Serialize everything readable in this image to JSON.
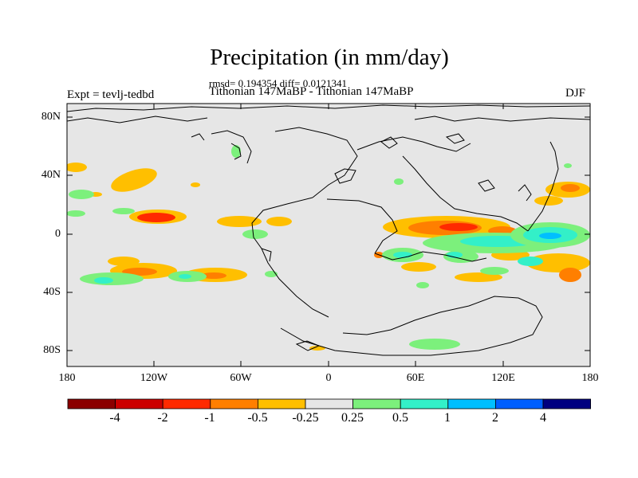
{
  "title": "Precipitation (in mm/day)",
  "stats": "rmsd= 0.194354 diff= 0.0121341",
  "subtitle": "Tithonian 147MaBP - Tithonian 147MaBP",
  "expt": "Expt = tevlj-tedbd",
  "season": "DJF",
  "lat_labels": [
    "80N",
    "40N",
    "0",
    "40S",
    "80S"
  ],
  "lon_labels": [
    "180",
    "120W",
    "60W",
    "0",
    "60E",
    "120E",
    "180"
  ],
  "colorbar": {
    "labels": [
      "-4",
      "-2",
      "-1",
      "-0.5",
      "-0.25",
      "0.25",
      "0.5",
      "1",
      "2",
      "4"
    ],
    "colors": [
      "#8b0000",
      "#cc0000",
      "#ff2a00",
      "#ff7f00",
      "#ffbf00",
      "#e6e6e6",
      "#7cf07c",
      "#33f0c8",
      "#00bfff",
      "#005fff",
      "#000080"
    ]
  }
}
